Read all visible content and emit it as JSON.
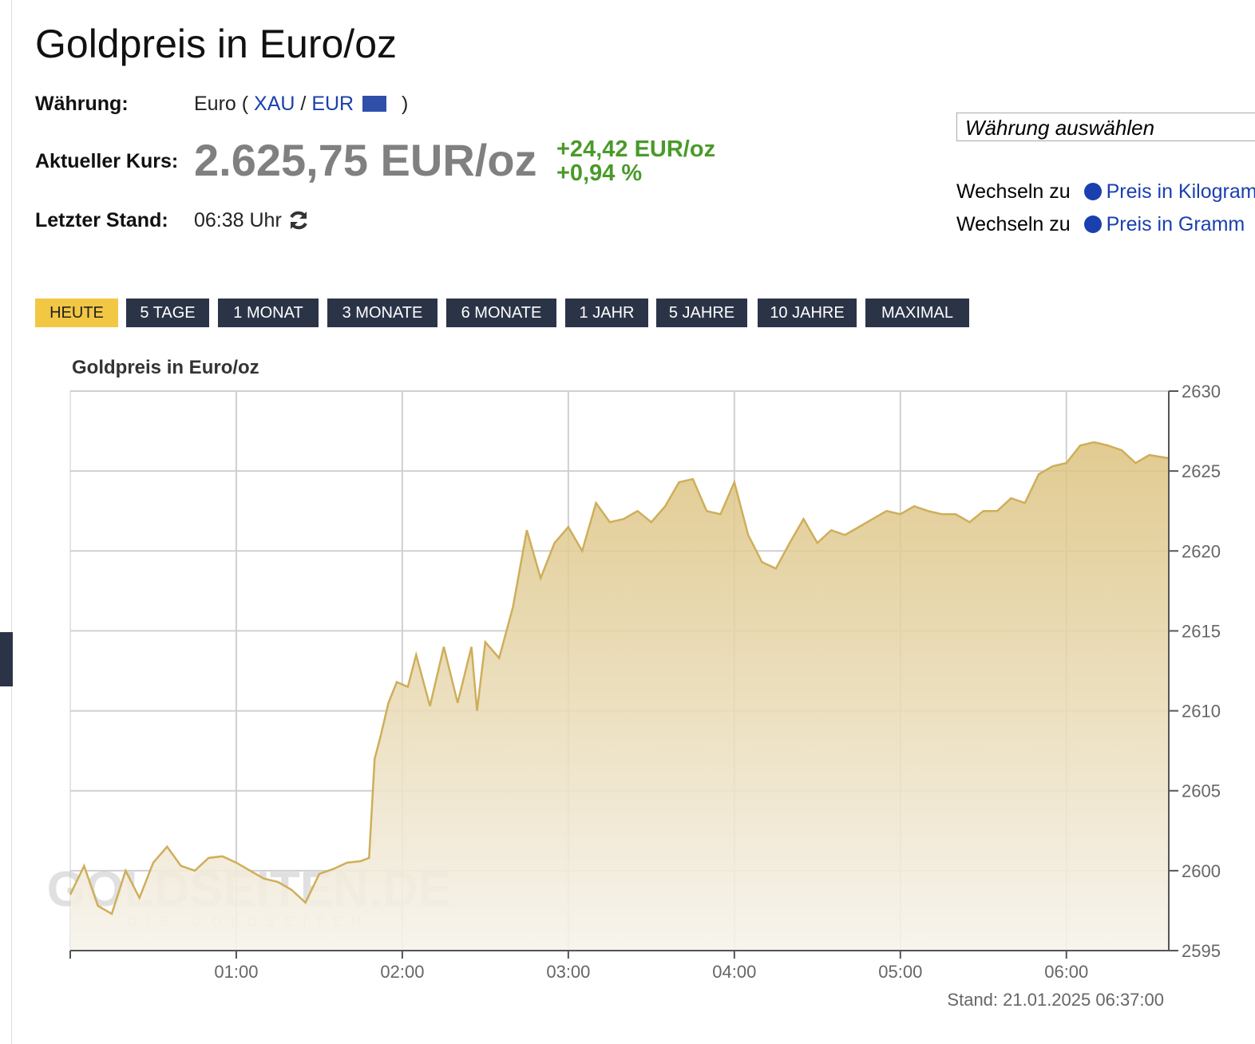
{
  "header": {
    "title": "Goldpreis in Euro/oz"
  },
  "info": {
    "currency_label": "Währung:",
    "currency_prefix": "Euro (",
    "currency_base": "XAU",
    "currency_sep": "/",
    "currency_quote": "EUR",
    "currency_suffix": ")",
    "price_label": "Aktueller Kurs:",
    "price": "2.625,75 EUR/oz",
    "change_abs": "+24,42 EUR/oz",
    "change_pct": "+0,94 %",
    "time_label": "Letzter Stand:",
    "time": "06:38 Uhr"
  },
  "sidebar": {
    "select": "Währung auswählen",
    "links": [
      {
        "prefix": "Wechseln zu",
        "label": "Preis in Kilogramm"
      },
      {
        "prefix": "Wechseln zu",
        "label": "Preis in Gramm"
      }
    ]
  },
  "tabs": [
    "HEUTE",
    "5 TAGE",
    "1 MONAT",
    "3 MONATE",
    "6 MONATE",
    "1 JAHR",
    "5 JAHRE",
    "10 JAHRE",
    "MAXIMAL"
  ],
  "active_tab": 0,
  "chart_data": {
    "type": "area",
    "title": "Goldpreis in Euro/oz",
    "footnote": "Stand: 21.01.2025 06:37:00",
    "watermark": "GOLDSEITEN.DE",
    "watermark_sub": "DIE·GOLDSEITEN",
    "color": "#cfae5a",
    "grid": true,
    "x": [
      0,
      5,
      10,
      15,
      20,
      25,
      30,
      35,
      40,
      45,
      50,
      55,
      60,
      65,
      70,
      75,
      80,
      85,
      90,
      95,
      100,
      105,
      108,
      110,
      112,
      115,
      118,
      122,
      125,
      130,
      135,
      140,
      145,
      147,
      150,
      155,
      160,
      165,
      170,
      175,
      180,
      185,
      190,
      195,
      200,
      205,
      210,
      215,
      220,
      225,
      230,
      235,
      240,
      245,
      250,
      255,
      260,
      265,
      270,
      275,
      280,
      285,
      290,
      295,
      300,
      305,
      310,
      315,
      320,
      325,
      330,
      335,
      340,
      345,
      350,
      355,
      360,
      365,
      370,
      375,
      380,
      385,
      390,
      397
    ],
    "values": [
      2598.5,
      2600.3,
      2597.8,
      2597.3,
      2600.0,
      2598.3,
      2600.5,
      2601.5,
      2600.3,
      2600.0,
      2600.8,
      2600.9,
      2600.5,
      2600.0,
      2599.5,
      2599.3,
      2598.8,
      2598.0,
      2599.8,
      2600.1,
      2600.5,
      2600.6,
      2600.8,
      2607.0,
      2608.3,
      2610.5,
      2611.8,
      2611.5,
      2613.5,
      2610.3,
      2614.0,
      2610.5,
      2614.0,
      2610.0,
      2614.3,
      2613.3,
      2616.5,
      2621.3,
      2618.3,
      2620.5,
      2621.5,
      2620.0,
      2623.0,
      2621.8,
      2622.0,
      2622.5,
      2621.8,
      2622.8,
      2624.3,
      2624.5,
      2622.5,
      2622.3,
      2624.3,
      2621.0,
      2619.3,
      2618.9,
      2620.5,
      2622.0,
      2620.5,
      2621.3,
      2621.0,
      2621.5,
      2622.0,
      2622.5,
      2622.3,
      2622.8,
      2622.5,
      2622.3,
      2622.3,
      2621.8,
      2622.5,
      2622.5,
      2623.3,
      2623.0,
      2624.8,
      2625.3,
      2625.5,
      2626.6,
      2626.8,
      2626.6,
      2626.3,
      2625.5,
      2626.0,
      2625.8
    ],
    "xlim": [
      0,
      397
    ],
    "xticks": [
      {
        "value": 60,
        "label": "01:00"
      },
      {
        "value": 120,
        "label": "02:00"
      },
      {
        "value": 180,
        "label": "03:00"
      },
      {
        "value": 240,
        "label": "04:00"
      },
      {
        "value": 300,
        "label": "05:00"
      },
      {
        "value": 360,
        "label": "06:00"
      }
    ],
    "ylim": [
      2595,
      2630
    ],
    "yticks": [
      2595,
      2600,
      2605,
      2610,
      2615,
      2620,
      2625,
      2630
    ]
  }
}
